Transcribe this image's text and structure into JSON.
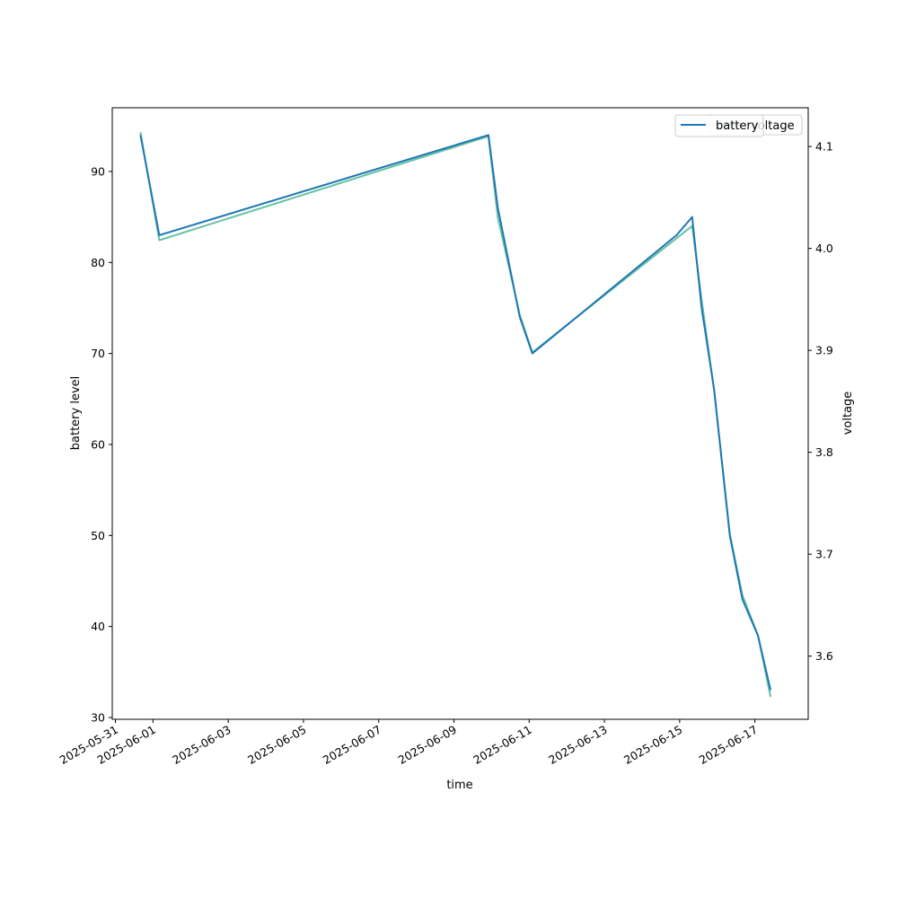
{
  "chart_data": {
    "type": "line",
    "xlabel": "time",
    "ylabel_left": "battery level",
    "ylabel_right": "voltage",
    "xlim": [
      "2025-05-30T22:00",
      "2025-06-18T10:00"
    ],
    "ylim_left": [
      29.8,
      97.0
    ],
    "ylim_right": [
      3.538,
      4.138
    ],
    "x_ticks": [
      "2025-05-31",
      "2025-06-01",
      "2025-06-03",
      "2025-06-05",
      "2025-06-07",
      "2025-06-09",
      "2025-06-11",
      "2025-06-13",
      "2025-06-15",
      "2025-06-17"
    ],
    "y_ticks_left": [
      30,
      40,
      50,
      60,
      70,
      80,
      90
    ],
    "y_ticks_right": [
      3.6,
      3.7,
      3.8,
      3.9,
      4.0,
      4.1
    ],
    "legend_position": "top-right",
    "legend": {
      "battery_label": "battery",
      "voltage_label": "voltage"
    },
    "series": [
      {
        "name": "battery",
        "axis": "left",
        "color": "#1f77b4",
        "points": [
          {
            "x": "2025-05-31T16:00",
            "y": 94
          },
          {
            "x": "2025-06-01T04:00",
            "y": 83
          },
          {
            "x": "2025-06-09T22:00",
            "y": 94
          },
          {
            "x": "2025-06-10T04:00",
            "y": 86
          },
          {
            "x": "2025-06-10T18:00",
            "y": 74
          },
          {
            "x": "2025-06-11T02:00",
            "y": 70
          },
          {
            "x": "2025-06-14T22:00",
            "y": 83
          },
          {
            "x": "2025-06-15T08:00",
            "y": 85
          },
          {
            "x": "2025-06-15T14:00",
            "y": 75
          },
          {
            "x": "2025-06-15T22:00",
            "y": 66
          },
          {
            "x": "2025-06-16T08:00",
            "y": 50
          },
          {
            "x": "2025-06-16T16:00",
            "y": 43
          },
          {
            "x": "2025-06-17T02:00",
            "y": 39
          },
          {
            "x": "2025-06-17T10:00",
            "y": 33
          }
        ]
      },
      {
        "name": "voltage",
        "axis": "right",
        "color": "#66c2a5",
        "points": [
          {
            "x": "2025-05-31T16:00",
            "y": 4.114
          },
          {
            "x": "2025-06-01T04:00",
            "y": 4.008
          },
          {
            "x": "2025-06-09T22:00",
            "y": 4.11
          },
          {
            "x": "2025-06-10T04:00",
            "y": 4.03
          },
          {
            "x": "2025-06-10T18:00",
            "y": 3.935
          },
          {
            "x": "2025-06-11T02:00",
            "y": 3.898
          },
          {
            "x": "2025-06-14T22:00",
            "y": 4.01
          },
          {
            "x": "2025-06-15T08:00",
            "y": 4.022
          },
          {
            "x": "2025-06-15T14:00",
            "y": 3.95
          },
          {
            "x": "2025-06-15T22:00",
            "y": 3.86
          },
          {
            "x": "2025-06-16T08:00",
            "y": 3.72
          },
          {
            "x": "2025-06-16T16:00",
            "y": 3.66
          },
          {
            "x": "2025-06-17T02:00",
            "y": 3.62
          },
          {
            "x": "2025-06-17T10:00",
            "y": 3.56
          }
        ]
      }
    ]
  }
}
